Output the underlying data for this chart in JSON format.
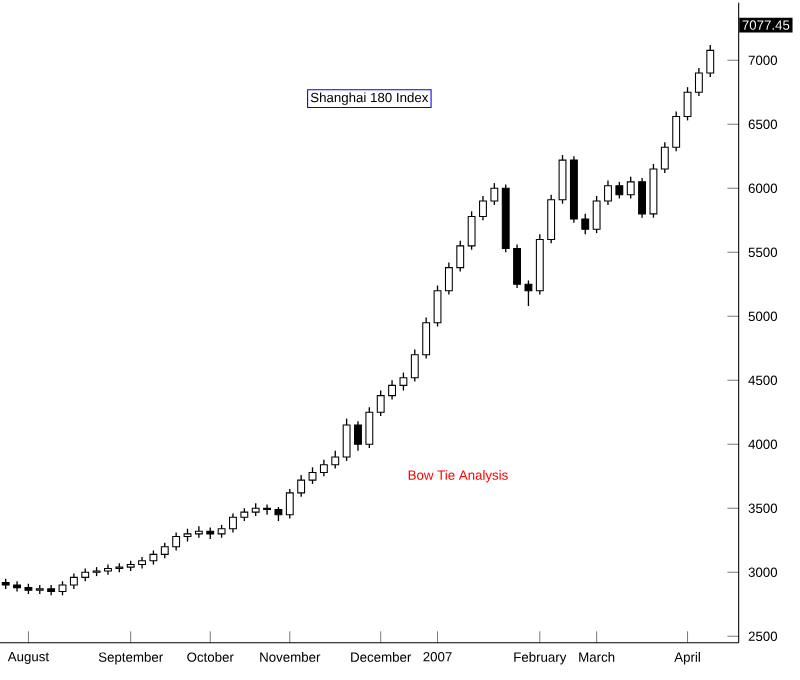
{
  "chart_data": {
    "type": "candlestick",
    "title": "Shanghai 180 Index",
    "categories": [
      null,
      null,
      "August",
      null,
      null,
      null,
      null,
      null,
      null,
      null,
      null,
      "September",
      null,
      null,
      null,
      null,
      null,
      null,
      "October",
      null,
      null,
      null,
      null,
      null,
      null,
      "November",
      null,
      null,
      null,
      null,
      null,
      null,
      null,
      "December",
      null,
      null,
      null,
      null,
      "2007",
      null,
      null,
      null,
      null,
      null,
      null,
      null,
      null,
      "February",
      null,
      null,
      null,
      null,
      "March",
      null,
      null,
      null,
      null,
      null,
      null,
      null,
      "April",
      null,
      null
    ],
    "ohlc": [
      [
        2920,
        2950,
        2870,
        2900
      ],
      [
        2900,
        2930,
        2850,
        2880
      ],
      [
        2880,
        2910,
        2830,
        2860
      ],
      [
        2860,
        2900,
        2830,
        2870
      ],
      [
        2870,
        2900,
        2820,
        2850
      ],
      [
        2850,
        2930,
        2820,
        2900
      ],
      [
        2900,
        2990,
        2870,
        2960
      ],
      [
        2960,
        3030,
        2930,
        3000
      ],
      [
        3000,
        3040,
        2970,
        3010
      ],
      [
        3010,
        3060,
        2980,
        3030
      ],
      [
        3030,
        3070,
        3000,
        3040
      ],
      [
        3040,
        3090,
        3010,
        3060
      ],
      [
        3060,
        3120,
        3030,
        3090
      ],
      [
        3090,
        3170,
        3060,
        3140
      ],
      [
        3140,
        3230,
        3110,
        3200
      ],
      [
        3200,
        3310,
        3170,
        3280
      ],
      [
        3280,
        3340,
        3240,
        3300
      ],
      [
        3300,
        3360,
        3270,
        3320
      ],
      [
        3320,
        3350,
        3260,
        3300
      ],
      [
        3300,
        3370,
        3270,
        3340
      ],
      [
        3340,
        3460,
        3310,
        3430
      ],
      [
        3430,
        3500,
        3400,
        3470
      ],
      [
        3470,
        3540,
        3440,
        3500
      ],
      [
        3500,
        3530,
        3450,
        3490
      ],
      [
        3490,
        3510,
        3400,
        3450
      ],
      [
        3450,
        3650,
        3420,
        3620
      ],
      [
        3620,
        3760,
        3590,
        3720
      ],
      [
        3720,
        3820,
        3690,
        3780
      ],
      [
        3780,
        3880,
        3750,
        3840
      ],
      [
        3840,
        3950,
        3810,
        3900
      ],
      [
        3900,
        4200,
        3870,
        4150
      ],
      [
        4150,
        4180,
        3950,
        4000
      ],
      [
        4000,
        4290,
        3970,
        4250
      ],
      [
        4250,
        4420,
        4220,
        4380
      ],
      [
        4380,
        4500,
        4350,
        4460
      ],
      [
        4460,
        4560,
        4420,
        4520
      ],
      [
        4520,
        4740,
        4490,
        4700
      ],
      [
        4700,
        4990,
        4670,
        4950
      ],
      [
        4950,
        5240,
        4920,
        5200
      ],
      [
        5200,
        5420,
        5170,
        5380
      ],
      [
        5380,
        5590,
        5350,
        5550
      ],
      [
        5550,
        5820,
        5520,
        5780
      ],
      [
        5780,
        5940,
        5750,
        5900
      ],
      [
        5900,
        6040,
        5870,
        6000
      ],
      [
        6000,
        6030,
        5500,
        5530
      ],
      [
        5530,
        5560,
        5220,
        5250
      ],
      [
        5250,
        5280,
        5080,
        5200
      ],
      [
        5200,
        5640,
        5170,
        5600
      ],
      [
        5600,
        5950,
        5570,
        5910
      ],
      [
        5910,
        6260,
        5880,
        6220
      ],
      [
        6220,
        6250,
        5730,
        5760
      ],
      [
        5760,
        5800,
        5640,
        5680
      ],
      [
        5680,
        5940,
        5650,
        5900
      ],
      [
        5900,
        6060,
        5870,
        6020
      ],
      [
        6020,
        6050,
        5920,
        5950
      ],
      [
        5950,
        6090,
        5920,
        6050
      ],
      [
        6050,
        6080,
        5770,
        5800
      ],
      [
        5800,
        6190,
        5770,
        6150
      ],
      [
        6150,
        6360,
        6120,
        6320
      ],
      [
        6320,
        6600,
        6290,
        6560
      ],
      [
        6560,
        6790,
        6530,
        6750
      ],
      [
        6750,
        6940,
        6720,
        6900
      ],
      [
        6900,
        7120,
        6870,
        7077.45
      ]
    ],
    "ylim": [
      2450,
      7450
    ],
    "yticks": [
      2500,
      3000,
      3500,
      4000,
      4500,
      5000,
      5500,
      6000,
      6500,
      7000
    ],
    "annotations": [
      "Bow Tie Analysis",
      "7077.45"
    ]
  }
}
